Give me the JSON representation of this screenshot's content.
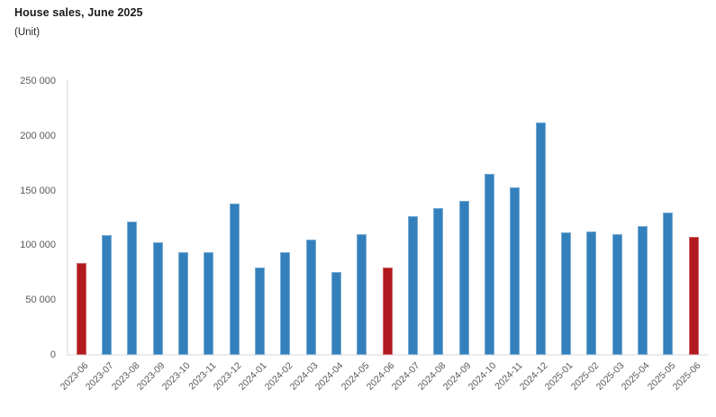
{
  "header": {
    "title": "House sales, June 2025",
    "unit_label": "(Unit)"
  },
  "chart_data": {
    "type": "bar",
    "title": "House sales, June 2025",
    "unit_label": "(Unit)",
    "xlabel": "",
    "ylabel": "Unit",
    "categories": [
      "2023-06",
      "2023-07",
      "2023-08",
      "2023-09",
      "2023-10",
      "2023-11",
      "2023-12",
      "2024-01",
      "2024-02",
      "2024-03",
      "2024-04",
      "2024-05",
      "2024-06",
      "2024-07",
      "2024-08",
      "2024-09",
      "2024-10",
      "2024-11",
      "2024-12",
      "2025-01",
      "2025-02",
      "2025-03",
      "2025-04",
      "2025-05",
      "2025-06"
    ],
    "values": [
      83500,
      109500,
      122000,
      103000,
      93500,
      93500,
      138500,
      80000,
      94000,
      105500,
      75500,
      110500,
      79500,
      127000,
      134000,
      141000,
      165000,
      153000,
      212500,
      112000,
      112500,
      110500,
      118000,
      130000,
      107500
    ],
    "highlighted_categories": [
      "2023-06",
      "2024-06",
      "2025-06"
    ],
    "colors": {
      "bar": "#3380bc",
      "highlight": "#b11a1e",
      "axis_line": "#eaeaea",
      "tick_text": "#595959",
      "title_text": "#1a1a1a"
    },
    "ylim": [
      0,
      250000
    ],
    "yticks": [
      0,
      50000,
      100000,
      150000,
      200000,
      250000
    ],
    "ytick_labels": [
      "0",
      "50 000",
      "100 000",
      "150 000",
      "200 000",
      "250 000"
    ],
    "xtick_rotation_deg": -45,
    "grid": false,
    "legend": "none"
  }
}
